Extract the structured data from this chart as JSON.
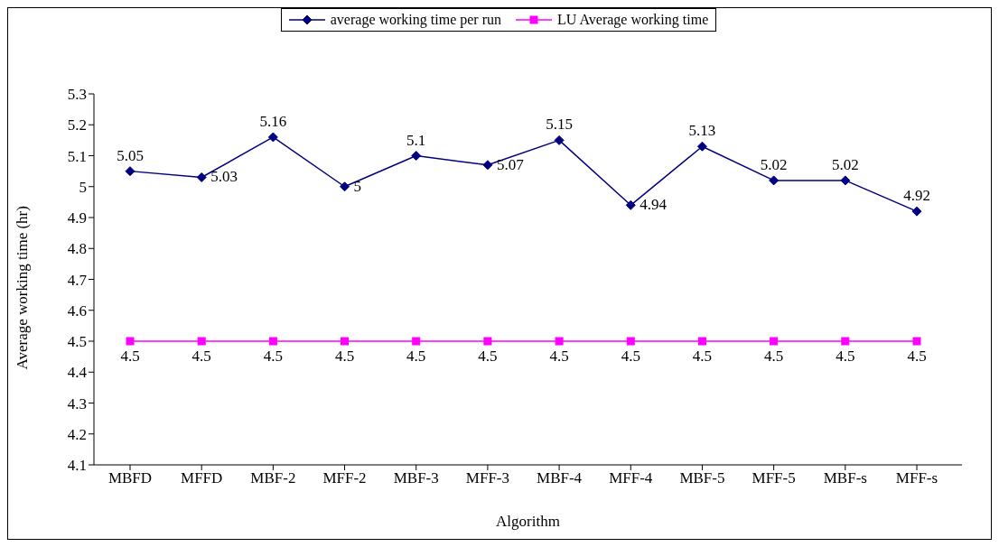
{
  "chart_data": {
    "type": "line",
    "xlabel": "Algorithm",
    "ylabel": "Average working time (hr)",
    "categories": [
      "MBFD",
      "MFFD",
      "MBF-2",
      "MFF-2",
      "MBF-3",
      "MFF-3",
      "MBF-4",
      "MFF-4",
      "MBF-5",
      "MFF-5",
      "MBF-s",
      "MFF-s"
    ],
    "series": [
      {
        "name": "average working time per run",
        "color": "#000080",
        "marker": "diamond",
        "values": [
          5.05,
          5.03,
          5.16,
          5,
          5.1,
          5.07,
          5.15,
          4.94,
          5.13,
          5.02,
          5.02,
          4.92
        ]
      },
      {
        "name": "LU Average working time",
        "color": "#ff00ff",
        "marker": "square",
        "values": [
          4.5,
          4.5,
          4.5,
          4.5,
          4.5,
          4.5,
          4.5,
          4.5,
          4.5,
          4.5,
          4.5,
          4.5
        ]
      }
    ],
    "ylim": [
      4.1,
      5.3
    ],
    "yticks": [
      4.1,
      4.2,
      4.3,
      4.4,
      4.5,
      4.6,
      4.7,
      4.8,
      4.9,
      5,
      5.1,
      5.2,
      5.3
    ],
    "grid": false,
    "legend": "top",
    "data_labels": true,
    "line_style": "solid"
  }
}
